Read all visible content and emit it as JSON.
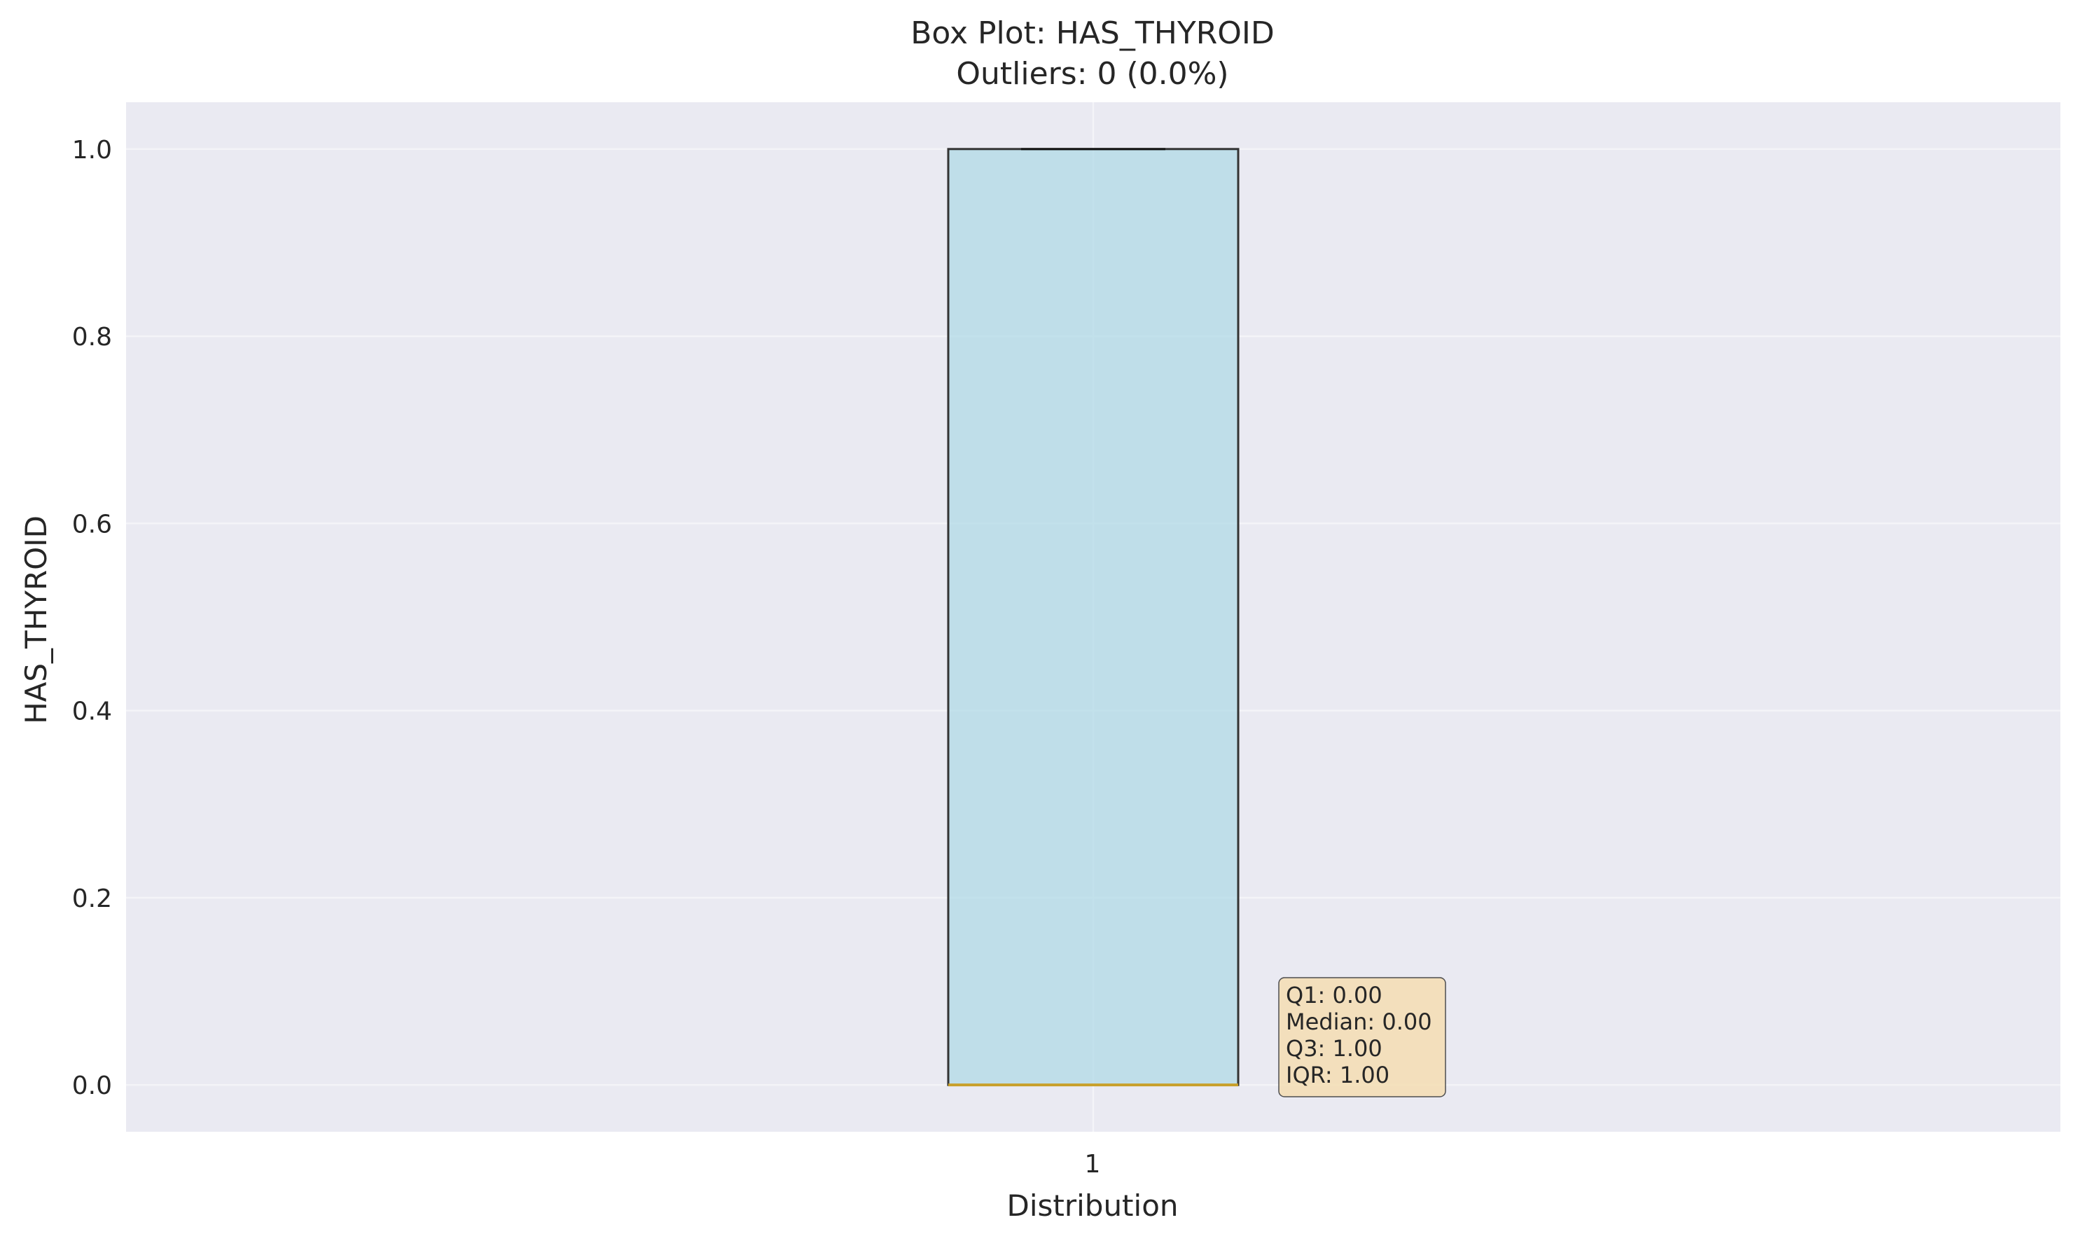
{
  "chart_data": {
    "type": "box",
    "title": "Box Plot: HAS_THYROID",
    "subtitle": "Outliers: 0 (0.0%)",
    "xlabel": "Distribution",
    "ylabel": "HAS_THYROID",
    "categories": [
      "1"
    ],
    "ylim": [
      -0.05,
      1.05
    ],
    "yticks": [
      0.0,
      0.2,
      0.4,
      0.6,
      0.8,
      1.0
    ],
    "ytick_labels": [
      "0.0",
      "0.2",
      "0.4",
      "0.6",
      "0.8",
      "1.0"
    ],
    "grid": true,
    "box": {
      "q1": 0.0,
      "median": 0.0,
      "q3": 1.0,
      "whisker_low": 0.0,
      "whisker_high": 1.0,
      "outliers": []
    },
    "stats_box": {
      "lines": [
        "Q1: 0.00",
        "Median: 0.00",
        "Q3: 1.00",
        "IQR: 1.00"
      ]
    },
    "colors": {
      "background": "#eaeaf2",
      "box_fill": "#add8e6",
      "box_edge": "#333333",
      "median": "#c8a02a",
      "grid": "#f4f4f8",
      "stats_fill": "#f5deb3"
    }
  }
}
